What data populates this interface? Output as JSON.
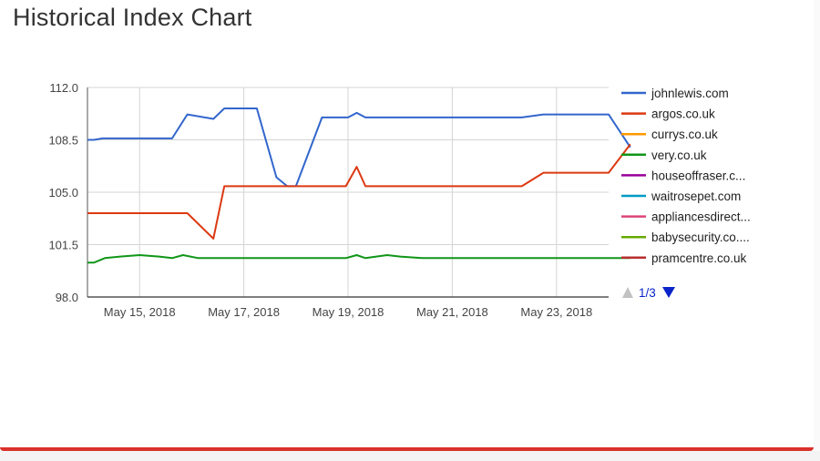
{
  "page": {
    "title": "Historical Index Chart",
    "accent_color": "#d9312b"
  },
  "chart_data": {
    "type": "line",
    "title": "",
    "xlabel": "",
    "ylabel": "",
    "ylim": [
      98.0,
      112.0
    ],
    "yticks": [
      "112.0",
      "108.5",
      "105.0",
      "101.5",
      "98.0"
    ],
    "xlim": [
      "2018-05-14",
      "2018-05-24"
    ],
    "xticks": [
      {
        "date": "2018-05-15",
        "label": "May 15, 2018"
      },
      {
        "date": "2018-05-17",
        "label": "May 17, 2018"
      },
      {
        "date": "2018-05-19",
        "label": "May 19, 2018"
      },
      {
        "date": "2018-05-21",
        "label": "May 21, 2018"
      },
      {
        "date": "2018-05-23",
        "label": "May 23, 2018"
      }
    ],
    "grid": true,
    "legend_position": "right",
    "series": [
      {
        "name": "johnlewis.com",
        "color": "#3366cc",
        "points": [
          [
            "2018-05-14 00:00",
            108.5
          ],
          [
            "2018-05-14 03:00",
            108.5
          ],
          [
            "2018-05-14 07:00",
            108.6
          ],
          [
            "2018-05-14 13:00",
            108.6
          ],
          [
            "2018-05-14 21:00",
            108.6
          ],
          [
            "2018-05-15 06:00",
            108.6
          ],
          [
            "2018-05-15 09:00",
            108.6
          ],
          [
            "2018-05-15 15:00",
            108.6
          ],
          [
            "2018-05-15 22:00",
            110.2
          ],
          [
            "2018-05-16 10:00",
            109.9
          ],
          [
            "2018-05-16 15:00",
            110.6
          ],
          [
            "2018-05-16 22:00",
            110.6
          ],
          [
            "2018-05-17 06:00",
            110.6
          ],
          [
            "2018-05-17 15:00",
            106.0
          ],
          [
            "2018-05-17 20:00",
            105.4
          ],
          [
            "2018-05-18 00:00",
            105.4
          ],
          [
            "2018-05-18 12:00",
            110.0
          ],
          [
            "2018-05-18 23:00",
            110.0
          ],
          [
            "2018-05-19 00:00",
            110.0
          ],
          [
            "2018-05-19 04:00",
            110.3
          ],
          [
            "2018-05-19 08:00",
            110.0
          ],
          [
            "2018-05-19 12:00",
            110.0
          ],
          [
            "2018-05-19 18:00",
            110.0
          ],
          [
            "2018-05-20 00:00",
            110.0
          ],
          [
            "2018-05-21 00:00",
            110.0
          ],
          [
            "2018-05-22 00:00",
            110.0
          ],
          [
            "2018-05-22 08:00",
            110.0
          ],
          [
            "2018-05-22 18:00",
            110.2
          ],
          [
            "2018-05-23 12:00",
            110.2
          ],
          [
            "2018-05-24 00:00",
            110.2
          ],
          [
            "2018-05-24 10:00",
            108.0
          ]
        ]
      },
      {
        "name": "argos.co.uk",
        "color": "#dc3912",
        "points": [
          [
            "2018-05-14 00:00",
            103.6
          ],
          [
            "2018-05-15 06:00",
            103.6
          ],
          [
            "2018-05-15 22:00",
            103.6
          ],
          [
            "2018-05-16 10:00",
            101.9
          ],
          [
            "2018-05-16 15:00",
            105.4
          ],
          [
            "2018-05-17 06:00",
            105.4
          ],
          [
            "2018-05-18 00:00",
            105.4
          ],
          [
            "2018-05-18 23:00",
            105.4
          ],
          [
            "2018-05-19 04:00",
            106.7
          ],
          [
            "2018-05-19 08:00",
            105.4
          ],
          [
            "2018-05-20 00:00",
            105.4
          ],
          [
            "2018-05-22 08:00",
            105.4
          ],
          [
            "2018-05-22 18:00",
            106.3
          ],
          [
            "2018-05-24 00:00",
            106.3
          ],
          [
            "2018-05-24 10:00",
            108.2
          ]
        ]
      },
      {
        "name": "currys.co.uk",
        "color": "#ff9900",
        "points": []
      },
      {
        "name": "very.co.uk",
        "color": "#109618",
        "points": [
          [
            "2018-05-14 00:00",
            100.3
          ],
          [
            "2018-05-14 03:00",
            100.3
          ],
          [
            "2018-05-14 08:00",
            100.6
          ],
          [
            "2018-05-14 15:00",
            100.7
          ],
          [
            "2018-05-15 00:00",
            100.8
          ],
          [
            "2018-05-15 09:00",
            100.7
          ],
          [
            "2018-05-15 15:00",
            100.6
          ],
          [
            "2018-05-15 20:00",
            100.8
          ],
          [
            "2018-05-16 03:00",
            100.6
          ],
          [
            "2018-05-16 10:00",
            100.6
          ],
          [
            "2018-05-17 06:00",
            100.6
          ],
          [
            "2018-05-18 00:00",
            100.6
          ],
          [
            "2018-05-18 23:00",
            100.6
          ],
          [
            "2018-05-19 04:00",
            100.8
          ],
          [
            "2018-05-19 08:00",
            100.6
          ],
          [
            "2018-05-19 18:00",
            100.8
          ],
          [
            "2018-05-20 00:00",
            100.7
          ],
          [
            "2018-05-20 10:00",
            100.6
          ],
          [
            "2018-05-22 00:00",
            100.6
          ],
          [
            "2018-05-24 10:00",
            100.6
          ]
        ]
      },
      {
        "name": "houseoffraser.c...",
        "color": "#990099",
        "points": []
      },
      {
        "name": "waitrosepet.com",
        "color": "#0099c6",
        "points": []
      },
      {
        "name": "appliancesdirect...",
        "color": "#dd4477",
        "points": []
      },
      {
        "name": "babysecurity.co....",
        "color": "#66aa00",
        "points": []
      },
      {
        "name": "pramcentre.co.uk",
        "color": "#b82e2e",
        "points": []
      }
    ],
    "pager": {
      "text": "1/3",
      "prev_icon": "triangle-up-icon",
      "next_icon": "triangle-down-icon",
      "prev_color": "#c2c2c2",
      "next_color": "#0b24c9"
    }
  }
}
